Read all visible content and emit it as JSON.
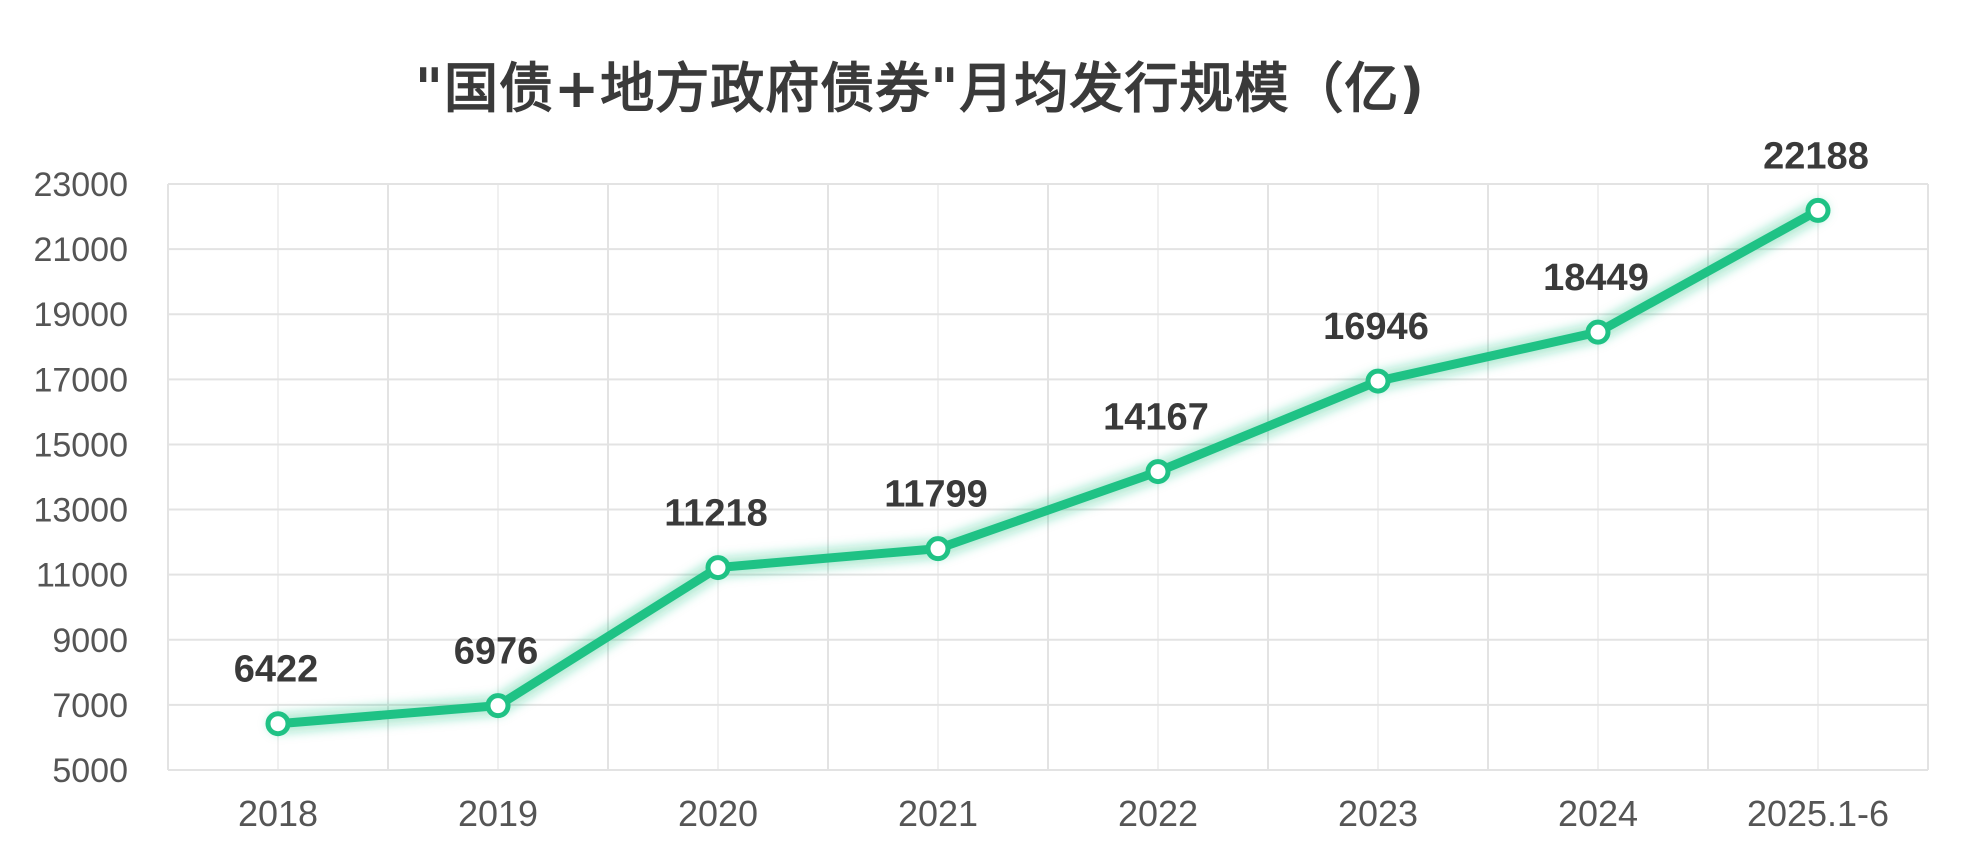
{
  "chart_data": {
    "type": "line",
    "title": "\"国债+地方政府债券\"月均发行规模（亿)",
    "xlabel": "",
    "ylabel": "",
    "categories": [
      "2018",
      "2019",
      "2020",
      "2021",
      "2022",
      "2023",
      "2024",
      "2025.1-6"
    ],
    "series": [
      {
        "values": [
          6422,
          6976,
          11218,
          11799,
          14167,
          16946,
          18449,
          22188
        ]
      }
    ],
    "data_labels": [
      "6422",
      "6976",
      "11218",
      "11799",
      "14167",
      "16946",
      "18449",
      "22188"
    ],
    "ylim": [
      5000,
      23000
    ],
    "yticks": [
      5000,
      7000,
      9000,
      11000,
      13000,
      15000,
      17000,
      19000,
      21000,
      23000
    ],
    "ytick_labels": [
      "5000",
      "7000",
      "9000",
      "11000",
      "13000",
      "15000",
      "17000",
      "19000",
      "21000",
      "23000"
    ],
    "grid": true,
    "legend": "none",
    "colors": {
      "line": "#1fc285",
      "marker_fill": "#ffffff",
      "grid": "#e3e3e3",
      "text": "#3a3a3a"
    }
  }
}
